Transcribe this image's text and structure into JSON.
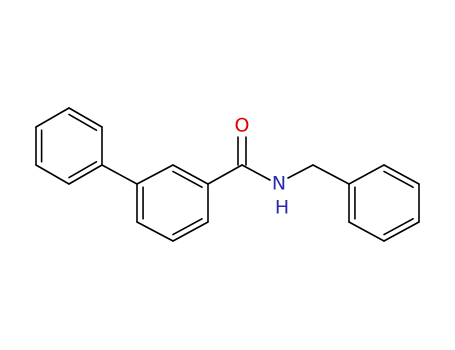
{
  "atoms": {
    "oxygen": "O",
    "nitrogen": "N",
    "hydrogen": "H"
  }
}
